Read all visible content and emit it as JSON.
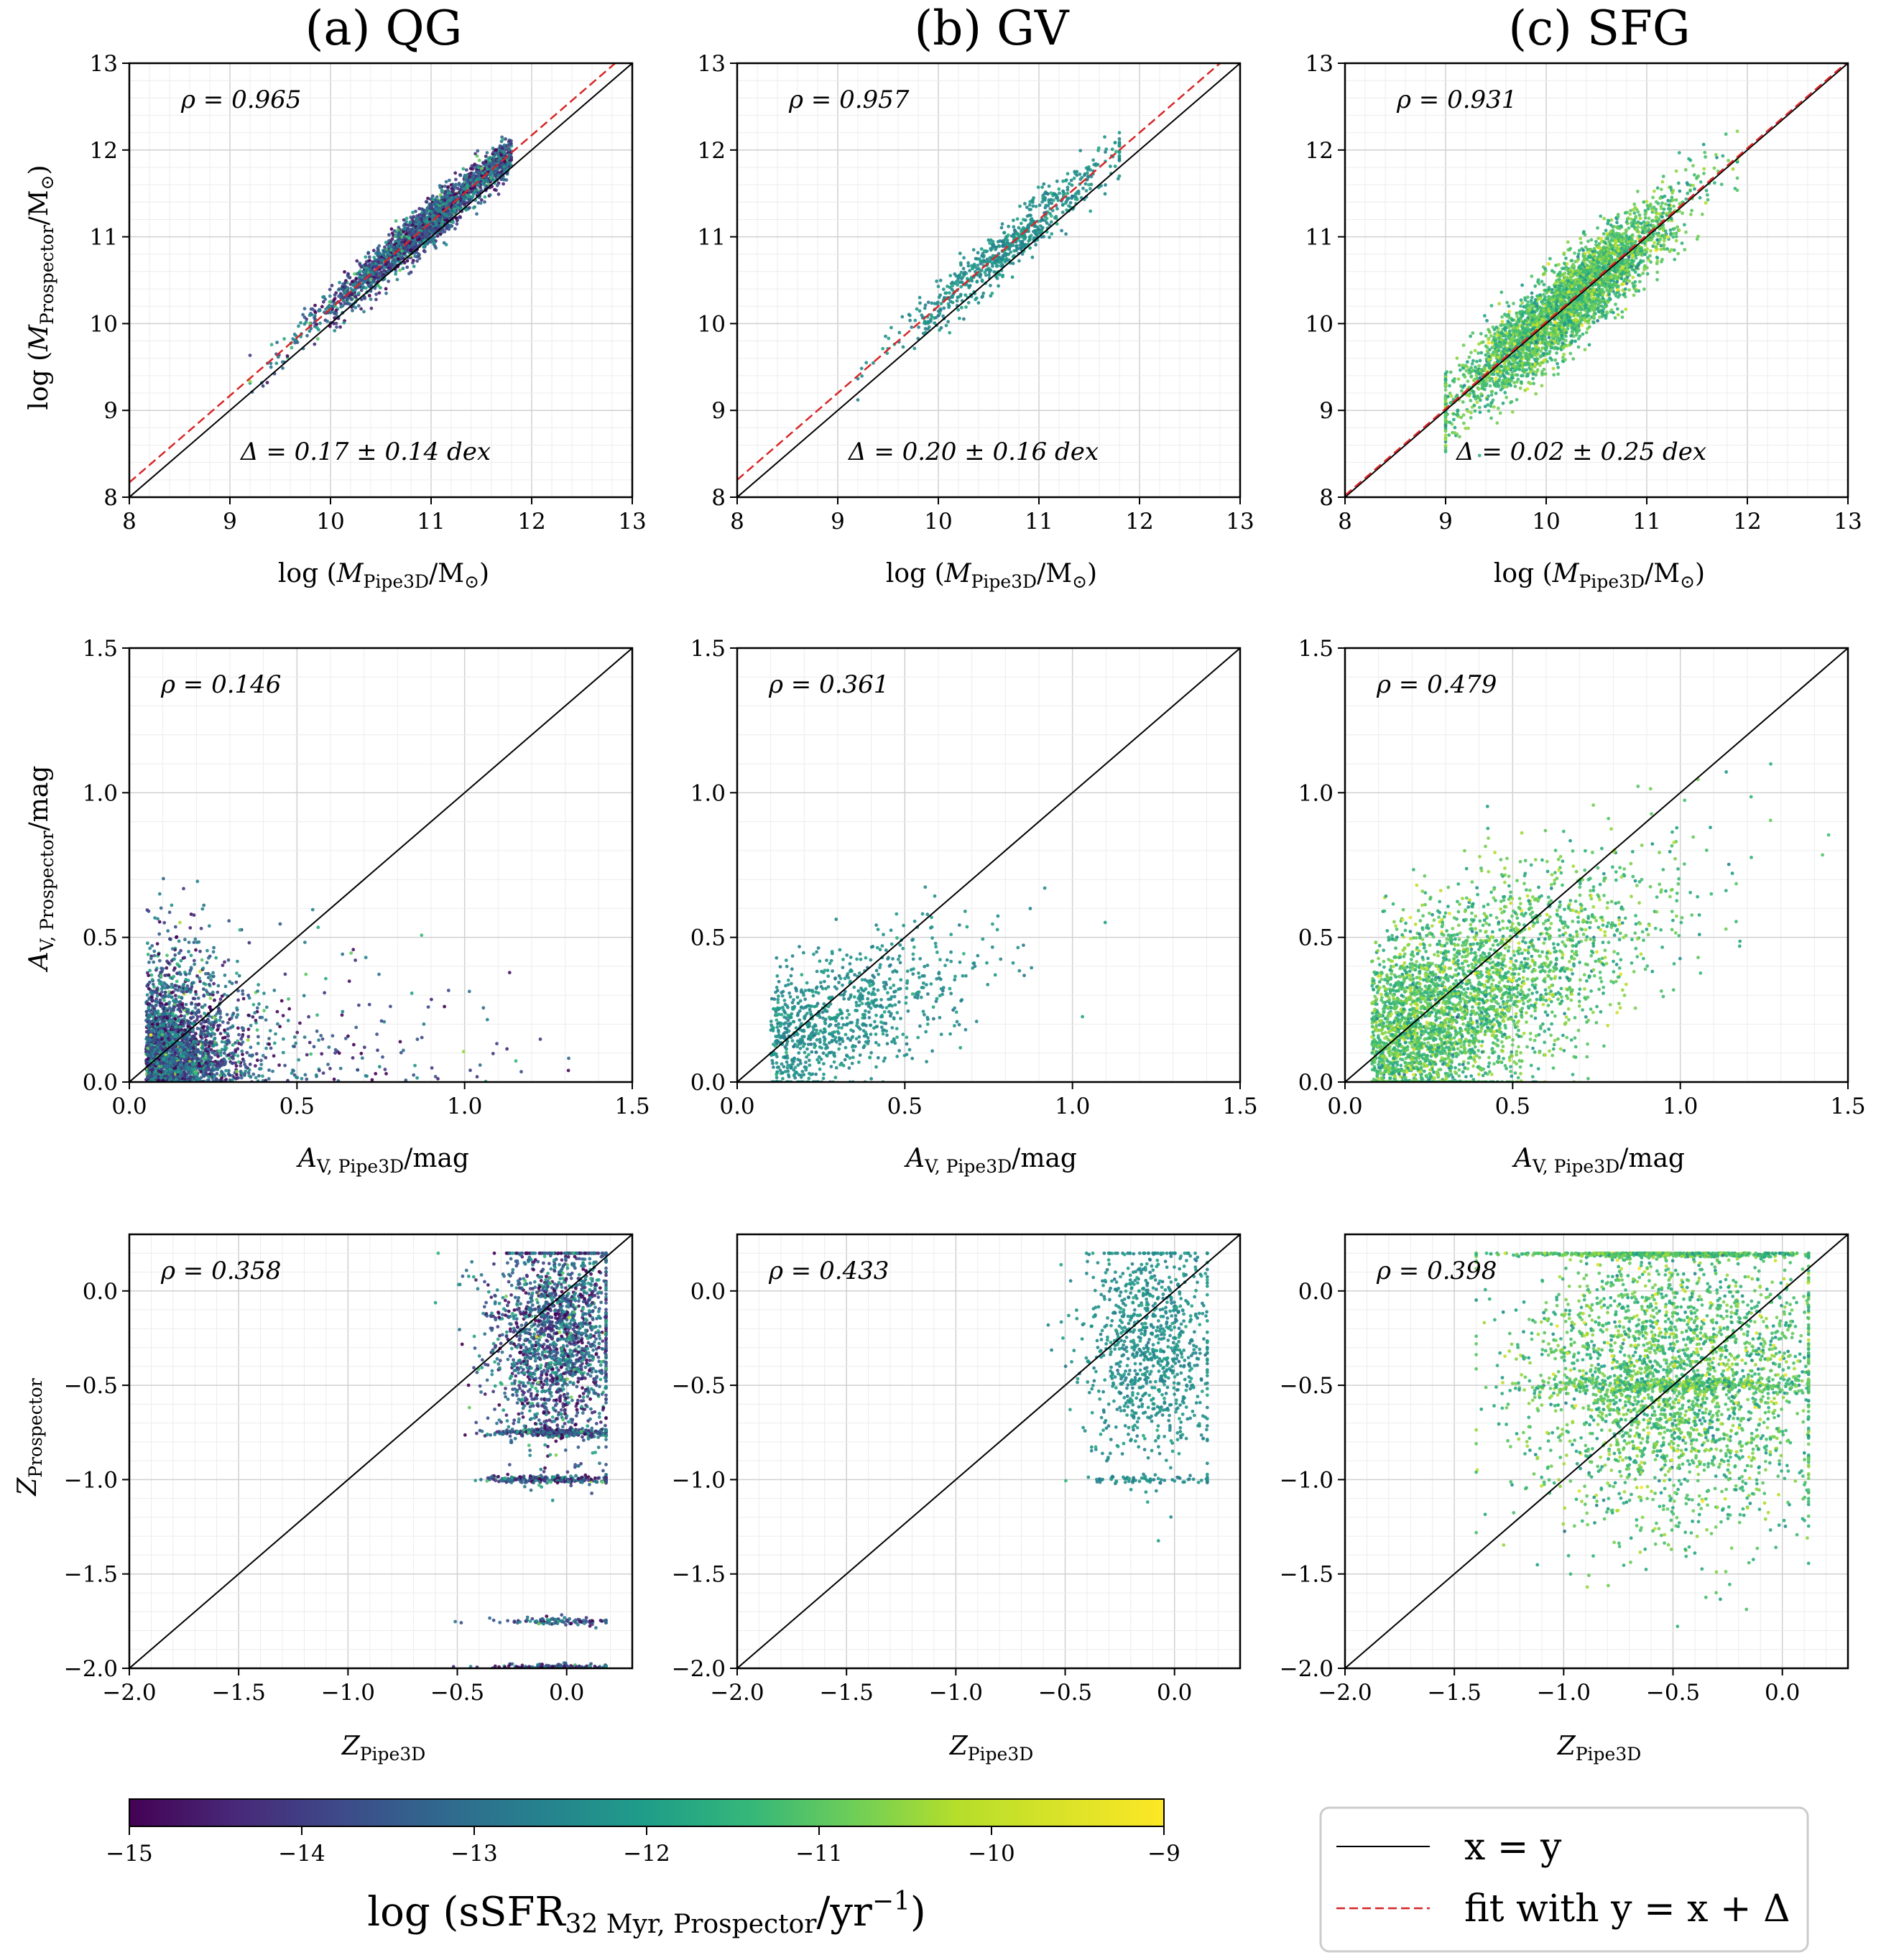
{
  "columns": [
    {
      "title": "(a) QG"
    },
    {
      "title": "(b) GV"
    },
    {
      "title": "(c) SFG"
    }
  ],
  "rows": [
    {
      "xlabel": "log (M_Pipe3D/M_⊙)",
      "ylabel": "log (M_Prospector/M_⊙)",
      "xlim": [
        8,
        13
      ],
      "ylim": [
        8,
        13
      ],
      "xticks": [
        "8",
        "9",
        "10",
        "11",
        "12",
        "13"
      ],
      "yticks": [
        "8",
        "9",
        "10",
        "11",
        "12",
        "13"
      ]
    },
    {
      "xlabel": "A_V, Pipe3D/mag",
      "ylabel": "A_V, Prospector/mag",
      "xlim": [
        0,
        1.5
      ],
      "ylim": [
        0,
        1.5
      ],
      "xticks": [
        "0.0",
        "0.5",
        "1.0",
        "1.5"
      ],
      "yticks": [
        "0.0",
        "0.5",
        "1.0",
        "1.5"
      ]
    },
    {
      "xlabel": "Z_Pipe3D",
      "ylabel": "Z_Prospector",
      "xlim": [
        -2.0,
        0.3
      ],
      "ylim": [
        -2.0,
        0.3
      ],
      "xticks": [
        "−2.0",
        "−1.5",
        "−1.0",
        "−0.5",
        "0.0"
      ],
      "yticks": [
        "−2.0",
        "−1.5",
        "−1.0",
        "−0.5",
        "0.0"
      ]
    }
  ],
  "chart_data": [
    {
      "type": "scatter",
      "panel": "mass-QG",
      "rho": "ρ = 0.965",
      "delta": "Δ = 0.17 ± 0.14 dex",
      "fit_offset": 0.17,
      "colormap": "viridis",
      "ssfr_center": -13.2,
      "ssfr_spread": 1.2
    },
    {
      "type": "scatter",
      "panel": "mass-GV",
      "rho": "ρ = 0.957",
      "delta": "Δ = 0.20 ± 0.16 dex",
      "fit_offset": 0.2,
      "colormap": "viridis",
      "ssfr_center": -12.0,
      "ssfr_spread": 0.3
    },
    {
      "type": "scatter",
      "panel": "mass-SFG",
      "rho": "ρ = 0.931",
      "delta": "Δ = 0.02 ± 0.25 dex",
      "fit_offset": 0.02,
      "colormap": "viridis",
      "ssfr_center": -10.7,
      "ssfr_spread": 0.6
    },
    {
      "type": "scatter",
      "panel": "av-QG",
      "rho": "ρ = 0.146",
      "colormap": "viridis",
      "ssfr_center": -13.2,
      "ssfr_spread": 1.2
    },
    {
      "type": "scatter",
      "panel": "av-GV",
      "rho": "ρ = 0.361",
      "colormap": "viridis",
      "ssfr_center": -12.0,
      "ssfr_spread": 0.3
    },
    {
      "type": "scatter",
      "panel": "av-SFG",
      "rho": "ρ = 0.479",
      "colormap": "viridis",
      "ssfr_center": -10.7,
      "ssfr_spread": 0.6
    },
    {
      "type": "scatter",
      "panel": "z-QG",
      "rho": "ρ = 0.358",
      "colormap": "viridis",
      "ssfr_center": -13.2,
      "ssfr_spread": 1.2
    },
    {
      "type": "scatter",
      "panel": "z-GV",
      "rho": "ρ = 0.433",
      "colormap": "viridis",
      "ssfr_center": -12.0,
      "ssfr_spread": 0.3
    },
    {
      "type": "scatter",
      "panel": "z-SFG",
      "rho": "ρ = 0.398",
      "colormap": "viridis",
      "ssfr_center": -10.7,
      "ssfr_spread": 0.6
    }
  ],
  "colorbar": {
    "label": "log (sSFR_32 Myr, Prospector/yr^−1)",
    "range": [
      -15,
      -9
    ],
    "ticks": [
      "−15",
      "−14",
      "−13",
      "−12",
      "−11",
      "−10",
      "−9"
    ],
    "colormap": "viridis"
  },
  "legend": {
    "items": [
      {
        "label": "x = y",
        "style": "solid",
        "color": "#000000"
      },
      {
        "label": "fit with y = x + Δ",
        "style": "dashed",
        "color": "#d62728"
      }
    ]
  }
}
